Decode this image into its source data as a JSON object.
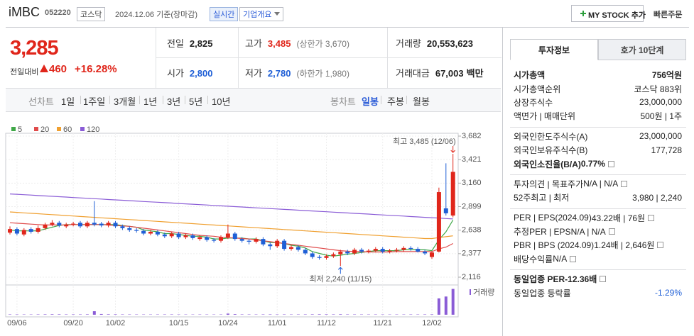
{
  "header": {
    "name": "iMBC",
    "code": "052220",
    "market": "코스닥",
    "date": "2024.12.06 기준(장마감)",
    "realtime": "실시간",
    "company": "기업개요",
    "mystock": "MY STOCK 추가",
    "quick_order": "빠른주문"
  },
  "quote": {
    "price": "3,285",
    "change_label": "전일대비",
    "change": "460",
    "change_rate": "+16.28%"
  },
  "stats": [
    {
      "label": "전일",
      "value": "2,825"
    },
    {
      "label": "고가",
      "value": "3,485",
      "note": "(상한가 3,670)",
      "value_color": "#e0261b"
    },
    {
      "label": "거래량",
      "value": "20,553,623"
    },
    {
      "label": "시가",
      "value": "2,800",
      "value_color": "#1f5fd6"
    },
    {
      "label": "저가",
      "value": "2,780",
      "note": "(하한가 1,980)",
      "value_color": "#1f5fd6"
    },
    {
      "label": "거래대금",
      "value": "67,003",
      "unit": "백만"
    }
  ],
  "period_tabs": {
    "line_label": "선차트",
    "line": [
      "1일",
      "1주일",
      "3개월",
      "1년",
      "3년",
      "5년",
      "10년"
    ],
    "candle_label": "봉차트",
    "candle": [
      "일봉",
      "주봉",
      "월봉"
    ],
    "candle_selected": 0
  },
  "chart_data": {
    "type": "candlestick",
    "categories": [
      null,
      "09/06",
      null,
      null,
      null,
      null,
      null,
      null,
      null,
      "09/20",
      null,
      null,
      null,
      null,
      null,
      "10/02",
      null,
      null,
      null,
      null,
      null,
      null,
      null,
      null,
      "10/15",
      null,
      null,
      null,
      null,
      null,
      null,
      "10/24",
      null,
      null,
      null,
      null,
      null,
      null,
      "11/01",
      null,
      null,
      null,
      null,
      null,
      null,
      "11/12",
      null,
      null,
      null,
      null,
      null,
      null,
      null,
      "11/21",
      null,
      null,
      null,
      null,
      null,
      null,
      "12/02",
      null,
      null,
      null
    ],
    "open": [
      2610,
      2650,
      2590,
      2650,
      2620,
      2660,
      2700,
      2720,
      2680,
      2700,
      2720,
      2680,
      2720,
      2710,
      2690,
      2720,
      2680,
      2660,
      2640,
      2630,
      2600,
      2620,
      2590,
      2570,
      2600,
      2560,
      2580,
      2540,
      2560,
      2530,
      2520,
      2560,
      2600,
      2540,
      2520,
      2510,
      2540,
      2480,
      2460,
      2520,
      2430,
      2450,
      2420,
      2380,
      2340,
      2330,
      2350,
      2370,
      2400,
      2380,
      2420,
      2400,
      2410,
      2430,
      2400,
      2410,
      2420,
      2440,
      2430,
      2400,
      2340,
      2400,
      2880,
      2800
    ],
    "high": [
      2680,
      2670,
      2660,
      2670,
      2690,
      2720,
      2750,
      2740,
      2720,
      2730,
      2740,
      2740,
      2960,
      2730,
      2740,
      2740,
      2700,
      2680,
      2660,
      2650,
      2640,
      2640,
      2610,
      2620,
      2620,
      2600,
      2600,
      2580,
      2580,
      2550,
      2580,
      2700,
      2620,
      2560,
      2540,
      2560,
      2560,
      2500,
      2540,
      2540,
      2470,
      2470,
      2440,
      2400,
      2360,
      2370,
      2390,
      2420,
      2420,
      2440,
      2440,
      2430,
      2450,
      2450,
      2430,
      2440,
      2460,
      2460,
      2450,
      2420,
      2400,
      3110,
      3380,
      3485
    ],
    "low": [
      2590,
      2580,
      2570,
      2600,
      2600,
      2640,
      2680,
      2670,
      2660,
      2680,
      2660,
      2660,
      2680,
      2670,
      2670,
      2660,
      2640,
      2620,
      2610,
      2580,
      2580,
      2570,
      2550,
      2550,
      2540,
      2540,
      2530,
      2520,
      2510,
      2500,
      2500,
      2540,
      2520,
      2500,
      2480,
      2490,
      2460,
      2420,
      2440,
      2410,
      2410,
      2400,
      2360,
      2320,
      2310,
      2310,
      2330,
      2240,
      2360,
      2360,
      2380,
      2380,
      2390,
      2380,
      2380,
      2390,
      2400,
      2410,
      2390,
      2360,
      2320,
      2390,
      2800,
      2780
    ],
    "close": [
      2650,
      2600,
      2640,
      2620,
      2660,
      2700,
      2720,
      2690,
      2700,
      2710,
      2680,
      2720,
      2700,
      2690,
      2720,
      2680,
      2660,
      2640,
      2630,
      2600,
      2620,
      2590,
      2570,
      2600,
      2560,
      2580,
      2550,
      2560,
      2530,
      2520,
      2560,
      2600,
      2540,
      2520,
      2510,
      2540,
      2480,
      2460,
      2520,
      2430,
      2450,
      2420,
      2380,
      2340,
      2330,
      2350,
      2370,
      2400,
      2380,
      2420,
      2400,
      2410,
      2430,
      2400,
      2410,
      2420,
      2440,
      2430,
      2400,
      2380,
      2390,
      3060,
      2825,
      3285
    ],
    "up_color": "#e0261b",
    "down_color": "#1f5fd6",
    "series": [
      {
        "name": "5",
        "color": "#3fa847",
        "values": [
          2640,
          2630,
          2630,
          2630,
          2630,
          2650,
          2670,
          2690,
          2700,
          2700,
          2700,
          2700,
          2700,
          2700,
          2700,
          2700,
          2690,
          2680,
          2670,
          2640,
          2630,
          2620,
          2600,
          2600,
          2590,
          2580,
          2570,
          2570,
          2560,
          2540,
          2540,
          2550,
          2550,
          2550,
          2540,
          2540,
          2520,
          2500,
          2500,
          2490,
          2470,
          2460,
          2440,
          2400,
          2380,
          2360,
          2350,
          2360,
          2370,
          2380,
          2390,
          2400,
          2410,
          2410,
          2410,
          2410,
          2420,
          2420,
          2420,
          2420,
          2410,
          2530,
          2620,
          2750
        ]
      },
      {
        "name": "20",
        "color": "#e04b4b",
        "values": [
          2720,
          2715,
          2710,
          2705,
          2700,
          2695,
          2695,
          2695,
          2695,
          2700,
          2700,
          2700,
          2700,
          2700,
          2695,
          2690,
          2685,
          2680,
          2670,
          2660,
          2650,
          2640,
          2630,
          2620,
          2610,
          2600,
          2590,
          2580,
          2575,
          2570,
          2560,
          2555,
          2550,
          2545,
          2540,
          2530,
          2520,
          2510,
          2500,
          2490,
          2480,
          2470,
          2460,
          2450,
          2440,
          2430,
          2420,
          2410,
          2405,
          2400,
          2400,
          2395,
          2395,
          2395,
          2395,
          2400,
          2400,
          2400,
          2400,
          2400,
          2400,
          2430,
          2450,
          2490
        ]
      },
      {
        "name": "60",
        "color": "#f0a030",
        "values": [
          2840,
          2835,
          2830,
          2825,
          2820,
          2815,
          2810,
          2805,
          2800,
          2795,
          2790,
          2785,
          2780,
          2775,
          2770,
          2765,
          2760,
          2755,
          2750,
          2745,
          2740,
          2735,
          2730,
          2725,
          2720,
          2715,
          2710,
          2705,
          2700,
          2695,
          2690,
          2685,
          2680,
          2675,
          2670,
          2665,
          2660,
          2655,
          2650,
          2645,
          2640,
          2635,
          2630,
          2625,
          2620,
          2615,
          2610,
          2605,
          2600,
          2595,
          2590,
          2585,
          2580,
          2575,
          2570,
          2565,
          2560,
          2555,
          2550,
          2545,
          2545,
          2555,
          2565,
          2575
        ]
      },
      {
        "name": "120",
        "color": "#8a5cd6",
        "values": [
          3040,
          3036,
          3031,
          3027,
          3022,
          3018,
          3014,
          3009,
          3005,
          3000,
          2996,
          2992,
          2987,
          2983,
          2978,
          2974,
          2970,
          2965,
          2961,
          2956,
          2952,
          2948,
          2943,
          2939,
          2934,
          2930,
          2926,
          2921,
          2917,
          2912,
          2908,
          2904,
          2899,
          2895,
          2890,
          2886,
          2882,
          2877,
          2873,
          2868,
          2864,
          2860,
          2855,
          2851,
          2846,
          2842,
          2838,
          2833,
          2829,
          2824,
          2820,
          2816,
          2811,
          2807,
          2802,
          2798,
          2794,
          2789,
          2785,
          2780,
          2776,
          2772,
          2767,
          2763
        ]
      }
    ],
    "ylim": [
      2116,
      3682
    ],
    "yticks": [
      {
        "value": 2116,
        "label": "2,116"
      },
      {
        "value": 2377,
        "label": "2,377"
      },
      {
        "value": 2638,
        "label": "2,638"
      },
      {
        "value": 2899,
        "label": "2,899"
      },
      {
        "value": 3160,
        "label": "3,160"
      },
      {
        "value": 3421,
        "label": "3,421"
      },
      {
        "value": 3682,
        "label": "3,682"
      }
    ],
    "grid": true,
    "annotations": {
      "high": "최고 3,485 (12/06)",
      "low": "최저 2,240 (11/15)"
    },
    "volume": {
      "name": "거래량",
      "color": "#8a5cd6",
      "ylim": [
        0,
        22000000
      ],
      "values": [
        300000,
        280000,
        260000,
        250000,
        300000,
        350000,
        420000,
        380000,
        300000,
        320000,
        300000,
        350000,
        2800000,
        600000,
        400000,
        380000,
        300000,
        280000,
        260000,
        250000,
        240000,
        260000,
        280000,
        300000,
        260000,
        240000,
        230000,
        250000,
        240000,
        230000,
        260000,
        900000,
        500000,
        300000,
        280000,
        260000,
        300000,
        320000,
        280000,
        300000,
        260000,
        280000,
        300000,
        350000,
        400000,
        380000,
        320000,
        420000,
        300000,
        280000,
        260000,
        250000,
        270000,
        260000,
        240000,
        250000,
        260000,
        280000,
        260000,
        300000,
        350000,
        13000000,
        14500000,
        20553623
      ]
    }
  },
  "side": {
    "tabs": [
      "투자정보",
      "호가 10단계"
    ],
    "groups": [
      [
        {
          "label": "시가총액",
          "value": "756억원",
          "strong": true
        },
        {
          "label": "시가총액순위",
          "value": "코스닥 883위"
        },
        {
          "label": "상장주식수",
          "value": "23,000,000"
        },
        {
          "label": "액면가 | 매매단위",
          "value": "500원 | 1주"
        }
      ],
      [
        {
          "label": "외국인한도주식수(A)",
          "value": "23,000,000"
        },
        {
          "label": "외국인보유주식수(B)",
          "value": "177,728"
        },
        {
          "label": "외국인소진율(B/A)",
          "value": "0.77%",
          "strong": true
        }
      ],
      [
        {
          "label": "투자의견 | 목표주가",
          "value": "N/A | N/A"
        },
        {
          "label": "52주최고 | 최저",
          "value": "3,980 | 2,240"
        }
      ],
      [
        {
          "label": "PER | EPS(2024.09)",
          "value": "43.22배 | 76원"
        },
        {
          "label": "추정PER | EPS",
          "value": "N/A | N/A"
        },
        {
          "label": "PBR | BPS (2024.09)",
          "value": "1.24배 | 2,646원"
        },
        {
          "label": "배당수익률",
          "value": "N/A"
        }
      ],
      [
        {
          "label": "동일업종 PER",
          "value": "-12.36배",
          "strong": true
        },
        {
          "label": "동일업종 등락률",
          "value": "-1.29%",
          "value_color": "#1f5fd6"
        }
      ]
    ]
  }
}
